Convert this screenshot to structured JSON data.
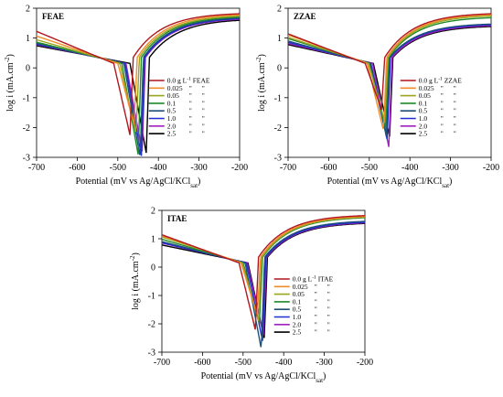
{
  "chart_data": [
    {
      "type": "line",
      "title": "FEAE",
      "xlabel": "Potential (mV vs Ag/AgCl/KCl",
      "xlabel_sub": "sat",
      "xlabel_end": ")",
      "ylabel": "log i (mA.cm",
      "ylabel_sup": "-2",
      "ylabel_end": ")",
      "xlim": [
        -700,
        -200
      ],
      "ylim": [
        -3,
        2
      ],
      "xticks": [
        "-700",
        "-600",
        "-500",
        "-400",
        "-300",
        "-200"
      ],
      "yticks": [
        "-3",
        "-2",
        "-1",
        "0",
        "1",
        "2"
      ],
      "legend_header": {
        "unit": "g L",
        "unit_sup": "-1",
        "inhibitor": "FEAE"
      },
      "legend_ditto": "\"",
      "series": [
        {
          "name": "0.0",
          "color": "#b0171f",
          "ecorr": -470,
          "min": -2.25,
          "start": 1.45,
          "end": 1.85
        },
        {
          "name": "0.025",
          "color": "#f28c28",
          "ecorr": -460,
          "min": -1.9,
          "start": 1.25,
          "end": 1.82
        },
        {
          "name": "0.05",
          "color": "#9aa51f",
          "ecorr": -455,
          "min": -2.2,
          "start": 1.1,
          "end": 1.78
        },
        {
          "name": "0.1",
          "color": "#1f8a2a",
          "ecorr": -450,
          "min": -2.9,
          "start": 1.0,
          "end": 1.75
        },
        {
          "name": "0.5",
          "color": "#1d4f7a",
          "ecorr": -445,
          "min": -3.0,
          "start": 0.95,
          "end": 1.72
        },
        {
          "name": "1.0",
          "color": "#1f2fd0",
          "ecorr": -442,
          "min": -2.95,
          "start": 0.92,
          "end": 1.7
        },
        {
          "name": "2.0",
          "color": "#a020c0",
          "ecorr": -440,
          "min": -2.8,
          "start": 0.9,
          "end": 1.68
        },
        {
          "name": "2.5",
          "color": "#000000",
          "ecorr": -430,
          "min": -2.85,
          "start": 0.85,
          "end": 1.65
        }
      ]
    },
    {
      "type": "line",
      "title": "ZZAE",
      "xlabel": "Potential (mV vs Ag/AgCl/KCl",
      "xlabel_sub": "sat",
      "xlabel_end": ")",
      "ylabel": "log i (mA.cm",
      "ylabel_sup": "-2",
      "ylabel_end": ")",
      "xlim": [
        -700,
        -200
      ],
      "ylim": [
        -3,
        2
      ],
      "xticks": [
        "-700",
        "-600",
        "-500",
        "-400",
        "-300",
        "-200"
      ],
      "yticks": [
        "-3",
        "-2",
        "-1",
        "0",
        "1",
        "2"
      ],
      "legend_header": {
        "unit": "g L",
        "unit_sup": "-1",
        "inhibitor": "ZZAE"
      },
      "legend_ditto": "\"",
      "series": [
        {
          "name": "0.0",
          "color": "#b0171f",
          "ecorr": -470,
          "min": -1.4,
          "start": 1.35,
          "end": 1.85
        },
        {
          "name": "0.025",
          "color": "#f28c28",
          "ecorr": -465,
          "min": -2.1,
          "start": 1.3,
          "end": 1.82
        },
        {
          "name": "0.05",
          "color": "#9aa51f",
          "ecorr": -462,
          "min": -1.8,
          "start": 1.2,
          "end": 1.78
        },
        {
          "name": "0.1",
          "color": "#1f8a2a",
          "ecorr": -460,
          "min": -2.0,
          "start": 1.15,
          "end": 1.72
        },
        {
          "name": "0.5",
          "color": "#1d4f7a",
          "ecorr": -458,
          "min": -2.3,
          "start": 1.05,
          "end": 1.5
        },
        {
          "name": "1.0",
          "color": "#1f2fd0",
          "ecorr": -456,
          "min": -2.4,
          "start": 1.0,
          "end": 1.48
        },
        {
          "name": "2.0",
          "color": "#a020c0",
          "ecorr": -452,
          "min": -2.65,
          "start": 0.95,
          "end": 1.45
        },
        {
          "name": "2.5",
          "color": "#000000",
          "ecorr": -450,
          "min": -2.3,
          "start": 0.9,
          "end": 1.42
        }
      ]
    },
    {
      "type": "line",
      "title": "ITAE",
      "xlabel": "Potential (mV vs Ag/AgCl/KCl",
      "xlabel_sub": "sat",
      "xlabel_end": ")",
      "ylabel": "log i (mA.cm",
      "ylabel_sup": "-2",
      "ylabel_end": ")",
      "xlim": [
        -700,
        -200
      ],
      "ylim": [
        -3,
        2
      ],
      "xticks": [
        "-700",
        "-600",
        "-500",
        "-400",
        "-300",
        "-200"
      ],
      "yticks": [
        "-3",
        "-2",
        "-1",
        "0",
        "1",
        "2"
      ],
      "legend_header": {
        "unit": "g L",
        "unit_sup": "-1",
        "inhibitor": "ITAE"
      },
      "legend_ditto": "\"",
      "series": [
        {
          "name": "0.0",
          "color": "#b0171f",
          "ecorr": -470,
          "min": -2.2,
          "start": 1.35,
          "end": 1.85
        },
        {
          "name": "0.025",
          "color": "#f28c28",
          "ecorr": -465,
          "min": -1.7,
          "start": 1.3,
          "end": 1.82
        },
        {
          "name": "0.05",
          "color": "#9aa51f",
          "ecorr": -462,
          "min": -1.9,
          "start": 1.25,
          "end": 1.8
        },
        {
          "name": "0.1",
          "color": "#1f8a2a",
          "ecorr": -460,
          "min": -2.0,
          "start": 1.15,
          "end": 1.78
        },
        {
          "name": "0.5",
          "color": "#1d4f7a",
          "ecorr": -455,
          "min": -2.9,
          "start": 1.05,
          "end": 1.65
        },
        {
          "name": "1.0",
          "color": "#1f2fd0",
          "ecorr": -452,
          "min": -2.6,
          "start": 1.0,
          "end": 1.62
        },
        {
          "name": "2.0",
          "color": "#a020c0",
          "ecorr": -450,
          "min": -2.4,
          "start": 0.98,
          "end": 1.6
        },
        {
          "name": "2.5",
          "color": "#000000",
          "ecorr": -448,
          "min": -2.5,
          "start": 0.9,
          "end": 1.58
        }
      ]
    }
  ]
}
